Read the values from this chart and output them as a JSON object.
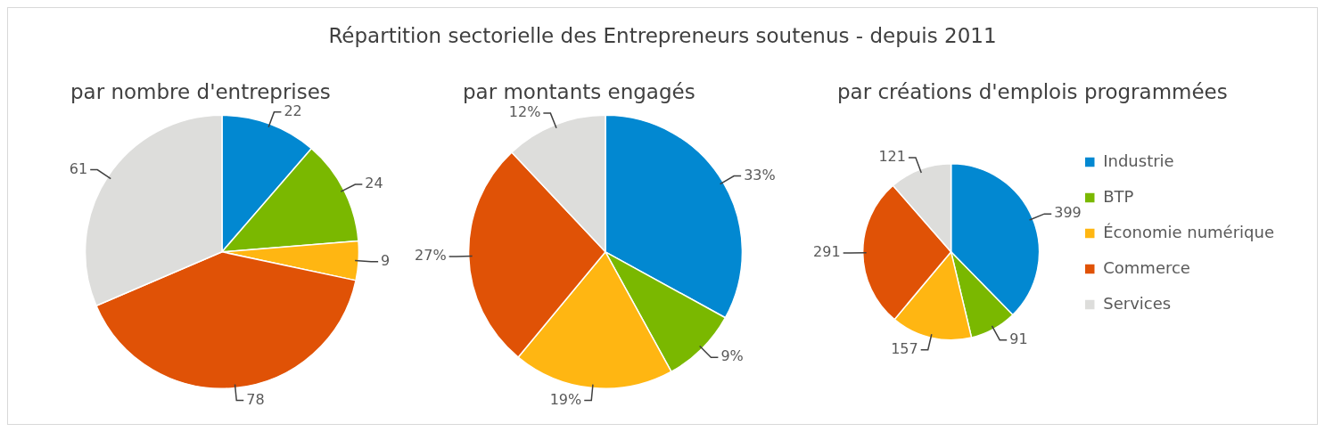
{
  "chart_data": [
    {
      "type": "other",
      "title": "Répartition sectorielle des Entrepreneurs soutenus - depuis 2011"
    },
    {
      "type": "pie",
      "title": "par nombre d'entreprises",
      "categories": [
        null,
        null,
        null,
        null,
        null
      ],
      "values": [
        22,
        24,
        9,
        78,
        61
      ],
      "colors": [
        "#0288d1",
        "#7ab800",
        "#ffb612",
        "#e05206",
        "#dddddb"
      ],
      "data_labels": true,
      "legend": false
    },
    {
      "type": "pie",
      "title": "par montants engagés",
      "categories": [
        null,
        null,
        null,
        null,
        null
      ],
      "values": [
        33,
        9,
        19,
        27,
        12
      ],
      "value_labels": [
        "33%",
        "9%",
        "19%",
        "27%",
        "12%"
      ],
      "colors": [
        "#0288d1",
        "#7ab800",
        "#ffb612",
        "#e05206",
        "#dddddb"
      ],
      "legend": false
    },
    {
      "type": "pie",
      "title": "par créations d'emplois programmées",
      "categories": [
        "Industrie",
        "BTP",
        "Économie numérique",
        "Commerce",
        "Services"
      ],
      "values": [
        399,
        91,
        157,
        291,
        121
      ],
      "colors": [
        "#0288d1",
        "#7ab800",
        "#ffb612",
        "#e05206",
        "#dddddb"
      ],
      "data_labels": true,
      "legend": "right"
    }
  ]
}
